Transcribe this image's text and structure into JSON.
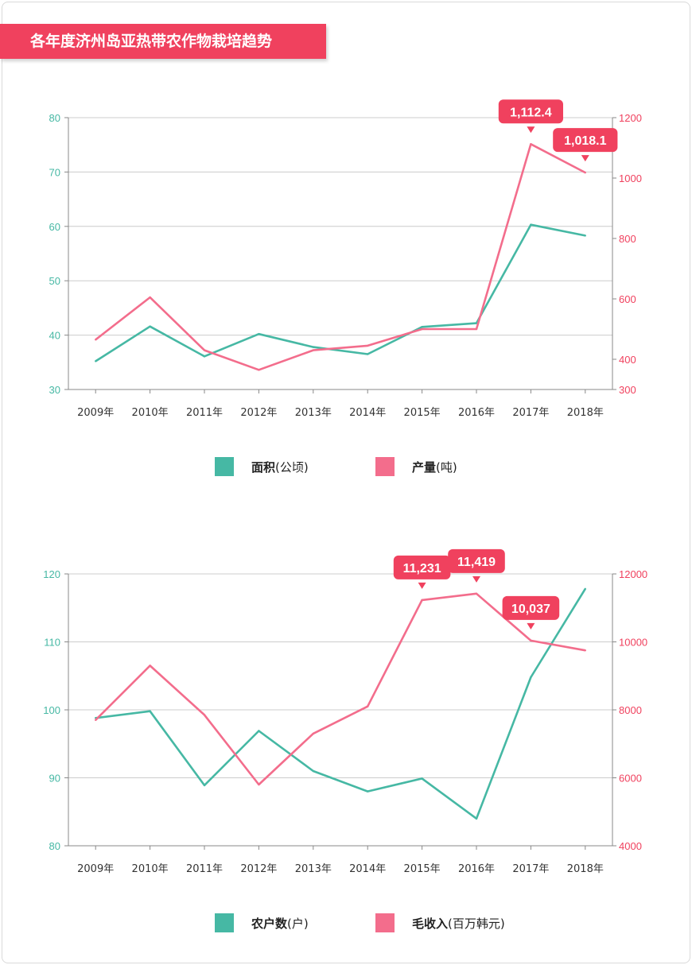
{
  "title": "各年度济州岛亚热带农作物栽培趋势",
  "colors": {
    "green": "#46b8a4",
    "pink": "#f36d8c",
    "accent": "#f0415e",
    "grid": "#cccccc",
    "axis": "#888888"
  },
  "chart_data": [
    {
      "type": "line",
      "categories": [
        "2009年",
        "2010年",
        "2011年",
        "2012年",
        "2013年",
        "2014年",
        "2015年",
        "2016年",
        "2017年",
        "2018年"
      ],
      "y_left": {
        "range": [
          30,
          80
        ],
        "ticks": [
          30,
          40,
          50,
          60,
          70,
          80
        ]
      },
      "y_right": {
        "range": [
          300,
          1200
        ],
        "ticks": [
          300,
          400,
          600,
          800,
          1000,
          1200
        ]
      },
      "grid": true,
      "legend": "bottom",
      "series": [
        {
          "name": "面积(公顷)",
          "axis": "left",
          "color": "#46b8a4",
          "values": [
            35.2,
            41.6,
            36.1,
            40.2,
            37.8,
            36.5,
            41.5,
            42.2,
            60.3,
            58.3
          ]
        },
        {
          "name": "产量(吨)",
          "axis": "right",
          "color": "#f36d8c",
          "values": [
            465,
            605,
            430,
            365,
            430,
            445,
            500,
            500,
            1112.4,
            1018.1
          ]
        }
      ],
      "annotations": [
        {
          "label": "1,112.4",
          "index": 8,
          "series": 1
        },
        {
          "label": "1,018.1",
          "index": 9,
          "series": 1
        }
      ]
    },
    {
      "type": "line",
      "categories": [
        "2009年",
        "2010年",
        "2011年",
        "2012年",
        "2013年",
        "2014年",
        "2015年",
        "2016年",
        "2017年",
        "2018年"
      ],
      "y_left": {
        "range": [
          80,
          120
        ],
        "ticks": [
          80,
          90,
          100,
          110,
          120
        ]
      },
      "y_right": {
        "range": [
          4000,
          12000
        ],
        "ticks": [
          4000,
          6000,
          8000,
          10000,
          12000
        ]
      },
      "grid": true,
      "legend": "bottom",
      "series": [
        {
          "name": "农户数(户)",
          "axis": "left",
          "color": "#46b8a4",
          "values": [
            98.8,
            99.8,
            88.9,
            96.9,
            91.0,
            88.0,
            89.9,
            84.0,
            104.8,
            117.8
          ]
        },
        {
          "name": "毛收入(百万韩元)",
          "axis": "right",
          "color": "#f36d8c",
          "values": [
            7700,
            9300,
            7850,
            5800,
            7300,
            8100,
            11231,
            11419,
            10037,
            9750
          ]
        }
      ],
      "annotations": [
        {
          "label": "11,231",
          "index": 6,
          "series": 1
        },
        {
          "label": "11,419",
          "index": 7,
          "series": 1
        },
        {
          "label": "10,037",
          "index": 8,
          "series": 1
        }
      ]
    }
  ]
}
